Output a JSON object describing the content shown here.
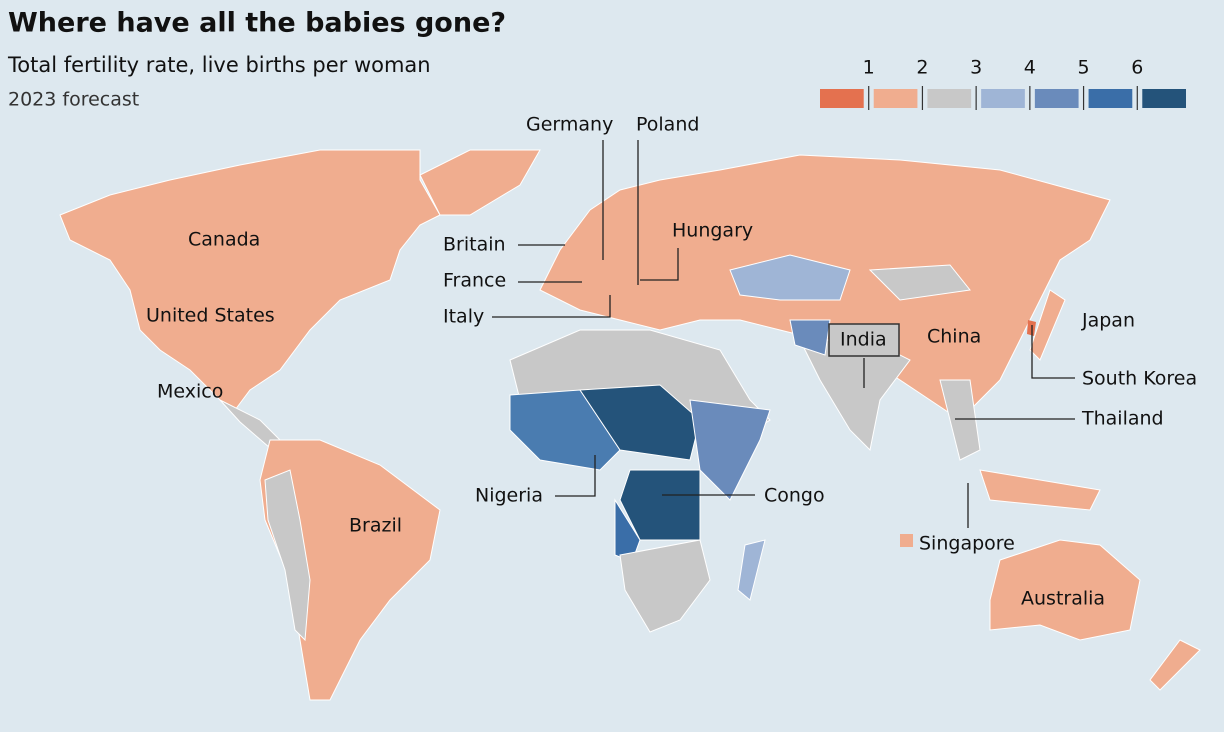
{
  "title": "Where have all the babies gone?",
  "subtitle": "Total fertility rate, live births per woman",
  "note": "2023 forecast",
  "legend": {
    "ticks": [
      1,
      2,
      3,
      4,
      5,
      6
    ],
    "colors": [
      "#e4714f",
      "#f0ad8f",
      "#c8c8c8",
      "#9fb5d6",
      "#6a8bbb",
      "#3a6ea8",
      "#24537a"
    ]
  },
  "labels": [
    "Germany",
    "Poland",
    "Britain",
    "Hungary",
    "France",
    "Italy",
    "Canada",
    "United States",
    "Mexico",
    "Brazil",
    "India",
    "China",
    "Japan",
    "South Korea",
    "Thailand",
    "Nigeria",
    "Congo",
    "Singapore",
    "Australia"
  ]
}
